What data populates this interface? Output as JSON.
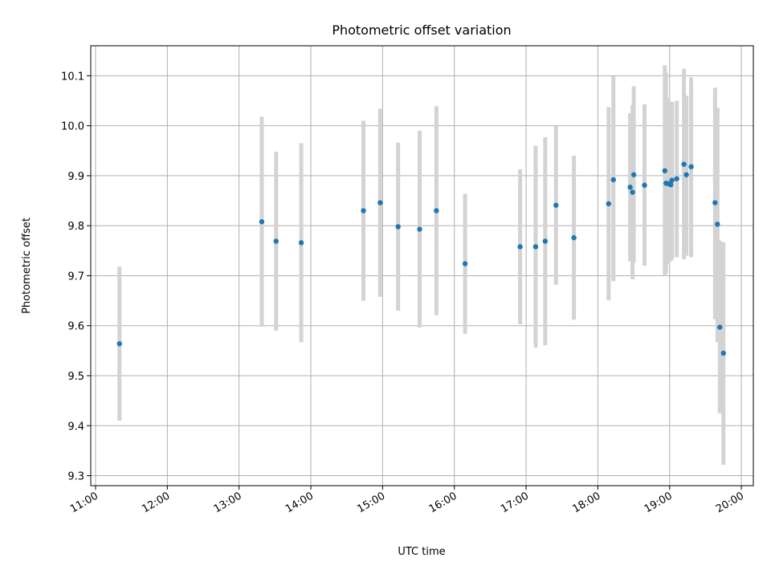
{
  "chart_data": {
    "type": "scatter",
    "title": "Photometric offset variation",
    "xlabel": "UTC time",
    "ylabel": "Photometric offset",
    "x_ticks": [
      "11:00",
      "12:00",
      "13:00",
      "14:00",
      "15:00",
      "16:00",
      "17:00",
      "18:00",
      "19:00",
      "20:00"
    ],
    "y_ticks": [
      "9.3",
      "9.4",
      "9.5",
      "9.6",
      "9.7",
      "9.8",
      "9.9",
      "10.0",
      "10.1"
    ],
    "xlim": [
      "10:56",
      "20:10"
    ],
    "ylim": [
      9.28,
      10.16
    ],
    "grid": true,
    "colors": {
      "point": "#1f77b4",
      "errorbar": "#d3d3d3"
    },
    "series": [
      {
        "points": [
          {
            "x": "11:20",
            "y": 9.564,
            "ylow": 9.41,
            "yhigh": 9.718
          },
          {
            "x": "13:19",
            "y": 9.808,
            "ylow": 9.598,
            "yhigh": 10.018
          },
          {
            "x": "13:31",
            "y": 9.769,
            "ylow": 9.59,
            "yhigh": 9.948
          },
          {
            "x": "13:52",
            "y": 9.766,
            "ylow": 9.567,
            "yhigh": 9.965
          },
          {
            "x": "14:44",
            "y": 9.83,
            "ylow": 9.65,
            "yhigh": 10.01
          },
          {
            "x": "14:58",
            "y": 9.846,
            "ylow": 9.658,
            "yhigh": 10.034
          },
          {
            "x": "15:13",
            "y": 9.798,
            "ylow": 9.63,
            "yhigh": 9.966
          },
          {
            "x": "15:31",
            "y": 9.793,
            "ylow": 9.596,
            "yhigh": 9.99
          },
          {
            "x": "15:45",
            "y": 9.83,
            "ylow": 9.621,
            "yhigh": 10.039
          },
          {
            "x": "16:09",
            "y": 9.724,
            "ylow": 9.584,
            "yhigh": 9.864
          },
          {
            "x": "16:55",
            "y": 9.758,
            "ylow": 9.603,
            "yhigh": 9.913
          },
          {
            "x": "17:08",
            "y": 9.758,
            "ylow": 9.556,
            "yhigh": 9.96
          },
          {
            "x": "17:16",
            "y": 9.769,
            "ylow": 9.561,
            "yhigh": 9.977
          },
          {
            "x": "17:25",
            "y": 9.841,
            "ylow": 9.682,
            "yhigh": 10.0
          },
          {
            "x": "17:40",
            "y": 9.776,
            "ylow": 9.612,
            "yhigh": 9.94
          },
          {
            "x": "18:09",
            "y": 9.844,
            "ylow": 9.651,
            "yhigh": 10.037
          },
          {
            "x": "18:13",
            "y": 9.892,
            "ylow": 9.689,
            "yhigh": 10.099
          },
          {
            "x": "18:27",
            "y": 9.877,
            "ylow": 9.729,
            "yhigh": 10.025
          },
          {
            "x": "18:29",
            "y": 9.867,
            "ylow": 9.693,
            "yhigh": 10.041
          },
          {
            "x": "18:30",
            "y": 9.902,
            "ylow": 9.726,
            "yhigh": 10.079
          },
          {
            "x": "18:39",
            "y": 9.881,
            "ylow": 9.72,
            "yhigh": 10.043
          },
          {
            "x": "18:56",
            "y": 9.91,
            "ylow": 9.7,
            "yhigh": 10.121
          },
          {
            "x": "18:57",
            "y": 9.885,
            "ylow": 9.705,
            "yhigh": 10.106
          },
          {
            "x": "18:59",
            "y": 9.884,
            "ylow": 9.724,
            "yhigh": 10.055
          },
          {
            "x": "19:01",
            "y": 9.882,
            "ylow": 9.729,
            "yhigh": 10.044
          },
          {
            "x": "19:02",
            "y": 9.891,
            "ylow": 9.734,
            "yhigh": 10.048
          },
          {
            "x": "19:06",
            "y": 9.894,
            "ylow": 9.737,
            "yhigh": 10.05
          },
          {
            "x": "19:12",
            "y": 9.923,
            "ylow": 9.733,
            "yhigh": 10.114
          },
          {
            "x": "19:14",
            "y": 9.902,
            "ylow": 9.74,
            "yhigh": 10.06
          },
          {
            "x": "19:18",
            "y": 9.918,
            "ylow": 9.737,
            "yhigh": 10.097
          },
          {
            "x": "19:38",
            "y": 9.846,
            "ylow": 9.613,
            "yhigh": 10.076
          },
          {
            "x": "19:40",
            "y": 9.803,
            "ylow": 9.567,
            "yhigh": 10.036
          },
          {
            "x": "19:42",
            "y": 9.597,
            "ylow": 9.425,
            "yhigh": 9.77
          },
          {
            "x": "19:45",
            "y": 9.545,
            "ylow": 9.322,
            "yhigh": 9.767
          }
        ]
      }
    ]
  }
}
